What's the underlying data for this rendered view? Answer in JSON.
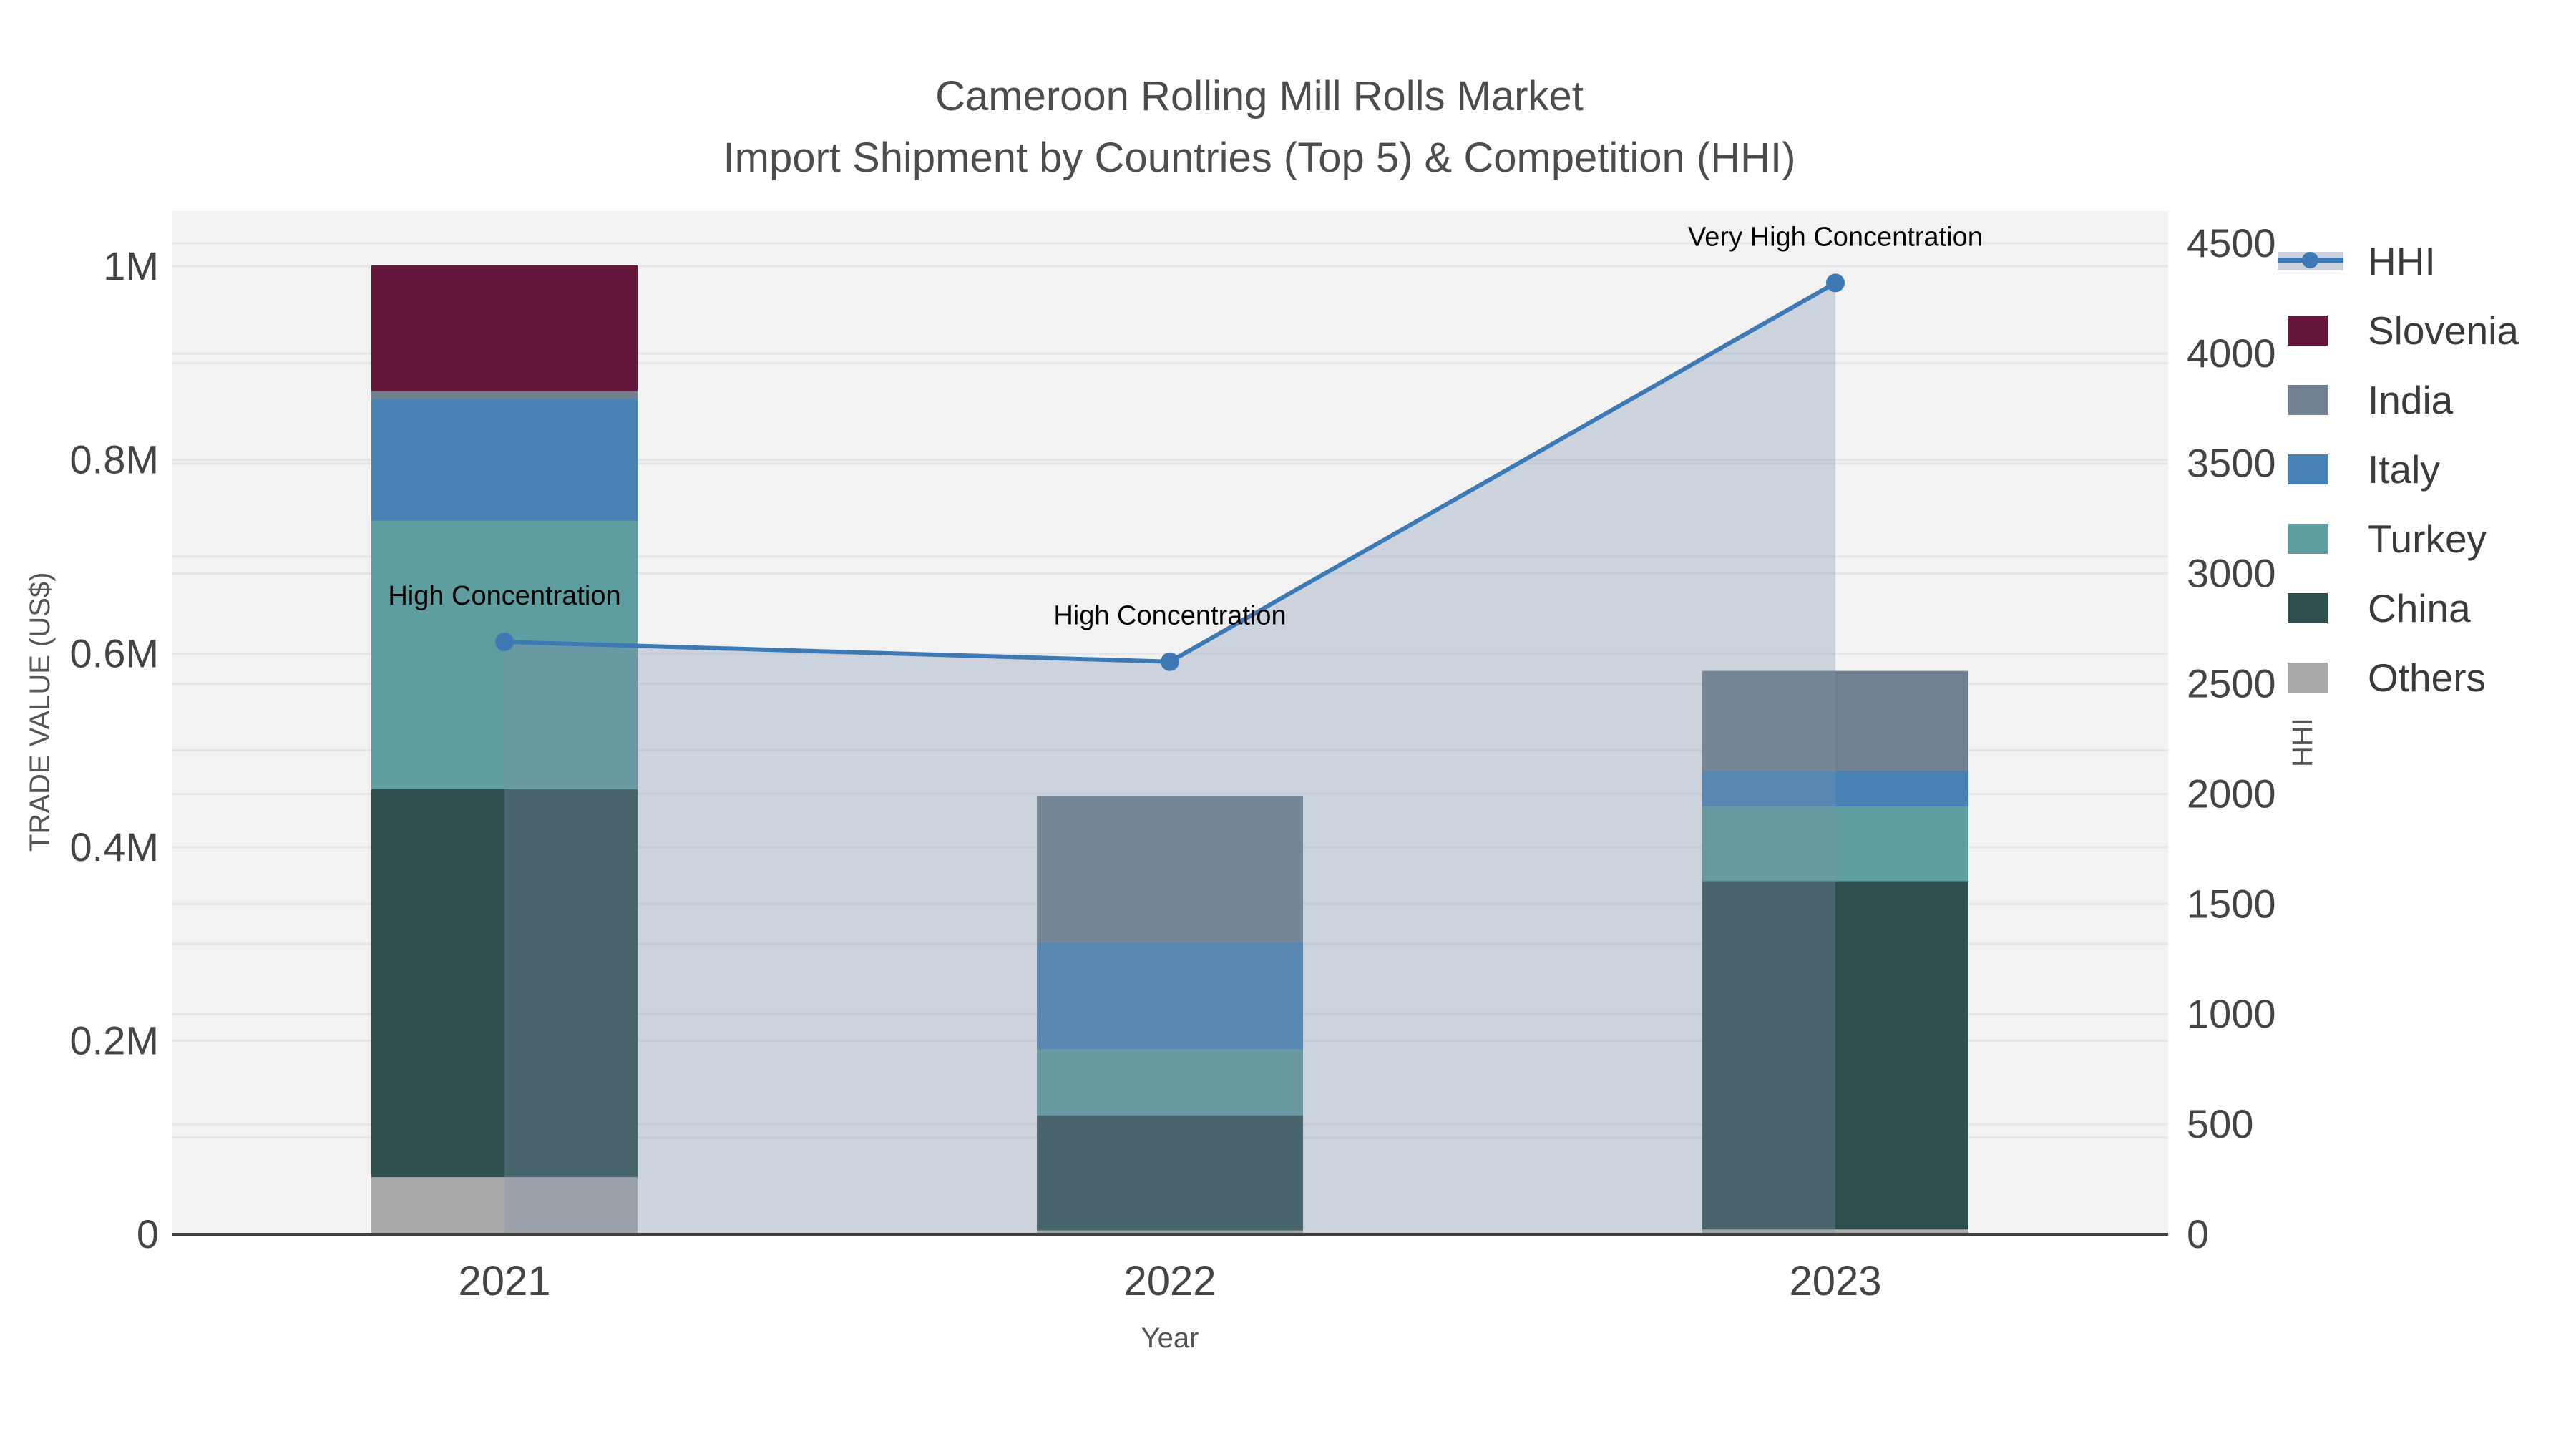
{
  "header": {
    "title_line1": "Cameroon Rolling Mill Rolls Market",
    "title_line2": "Import Shipment by Countries (Top 5) & Competition (HHI)"
  },
  "axes": {
    "left_title": "TRADE VALUE (US$)",
    "right_title": "HHI",
    "x_title": "Year",
    "left_ticks": [
      {
        "value": 0,
        "label": "0"
      },
      {
        "value": 200000,
        "label": "0.2M"
      },
      {
        "value": 400000,
        "label": "0.4M"
      },
      {
        "value": 600000,
        "label": "0.6M"
      },
      {
        "value": 800000,
        "label": "0.8M"
      },
      {
        "value": 1000000,
        "label": "1M"
      }
    ],
    "right_ticks": [
      {
        "value": 0,
        "label": "0"
      },
      {
        "value": 500,
        "label": "500"
      },
      {
        "value": 1000,
        "label": "1000"
      },
      {
        "value": 1500,
        "label": "1500"
      },
      {
        "value": 2000,
        "label": "2000"
      },
      {
        "value": 2500,
        "label": "2500"
      },
      {
        "value": 3000,
        "label": "3000"
      },
      {
        "value": 3500,
        "label": "3500"
      },
      {
        "value": 4000,
        "label": "4000"
      },
      {
        "value": 4500,
        "label": "4500"
      }
    ]
  },
  "legend": {
    "items": [
      {
        "label": "HHI",
        "type": "line"
      },
      {
        "label": "Slovenia",
        "type": "bar"
      },
      {
        "label": "India",
        "type": "bar"
      },
      {
        "label": "Italy",
        "type": "bar"
      },
      {
        "label": "Turkey",
        "type": "bar"
      },
      {
        "label": "China",
        "type": "bar"
      },
      {
        "label": "Others",
        "type": "bar"
      }
    ]
  },
  "chart_data": {
    "type": "bar",
    "subtype": "stacked-bars-with-line",
    "categories": [
      "2021",
      "2022",
      "2023"
    ],
    "stack_order_bottom_to_top": [
      "Others",
      "China",
      "Turkey",
      "Italy",
      "India",
      "Slovenia"
    ],
    "series": [
      {
        "name": "Others",
        "color": "#a9a9a9",
        "values": [
          59000,
          4000,
          5000
        ]
      },
      {
        "name": "China",
        "color": "#2f4f4f",
        "values": [
          401000,
          119000,
          360000
        ]
      },
      {
        "name": "Turkey",
        "color": "#5f9ea0",
        "values": [
          277000,
          68000,
          77000
        ]
      },
      {
        "name": "Italy",
        "color": "#4682b4",
        "values": [
          126000,
          111000,
          37000
        ]
      },
      {
        "name": "India",
        "color": "#708090",
        "values": [
          8000,
          151000,
          103000
        ]
      },
      {
        "name": "Slovenia",
        "color": "#64173b",
        "values": [
          130000,
          0,
          0
        ]
      }
    ],
    "totals_estimate": [
      1001000,
      453000,
      582000
    ],
    "hhi": {
      "name": "HHI",
      "axis": "right",
      "color": "#3d7ab5",
      "fill_color": "rgba(129,146,170,0.32)",
      "values": [
        2690,
        2600,
        4320
      ]
    },
    "annotations": [
      {
        "text": "High Concentration",
        "category": "2021",
        "hhi": 2690
      },
      {
        "text": "High Concentration",
        "category": "2022",
        "hhi": 2600
      },
      {
        "text": "Very High Concentration",
        "category": "2023",
        "hhi": 4320
      }
    ],
    "title": "Cameroon Rolling Mill Rolls Market Import Shipment by Countries (Top 5) & Competition (HHI)",
    "xlabel": "Year",
    "ylabel_left": "TRADE VALUE (US$)",
    "ylabel_right": "HHI",
    "ylim_left": [
      0,
      1057000
    ],
    "ylim_right": [
      0,
      4646
    ],
    "grid": true,
    "legend_position": "right"
  },
  "style": {
    "plot_bg": "#f2f2f3",
    "grid_color": "#e5e5e8",
    "axis_line_color": "#3f3f3f",
    "tick_color": "#444444",
    "annotation_color": "#000000"
  }
}
